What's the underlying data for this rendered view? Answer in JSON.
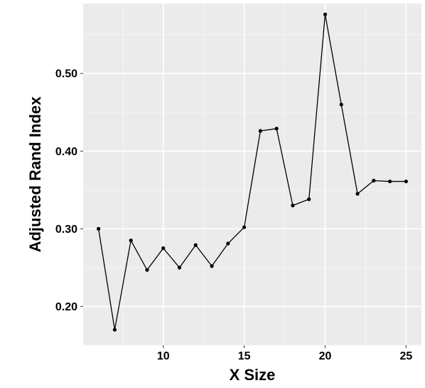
{
  "chart_data": {
    "type": "line",
    "title": "",
    "xlabel": "X Size",
    "ylabel": "Adjusted Rand Index",
    "x": [
      6,
      7,
      8,
      9,
      10,
      11,
      12,
      13,
      14,
      15,
      16,
      17,
      18,
      19,
      20,
      21,
      22,
      23,
      24,
      25
    ],
    "series": [
      {
        "values": [
          0.3,
          0.17,
          0.285,
          0.247,
          0.275,
          0.25,
          0.279,
          0.252,
          0.281,
          0.302,
          0.426,
          0.429,
          0.33,
          0.338,
          0.576,
          0.46,
          0.345,
          0.362,
          0.361,
          0.361
        ]
      }
    ],
    "xlim": [
      5.05,
      25.95
    ],
    "ylim": [
      0.15,
      0.59
    ],
    "xticks": [
      10,
      15,
      20,
      25
    ],
    "xtick_labels": [
      "10",
      "15",
      "20",
      "25"
    ],
    "yticks": [
      0.2,
      0.3,
      0.4,
      0.5
    ],
    "ytick_labels": [
      "0.20",
      "0.30",
      "0.40",
      "0.50"
    ],
    "grid": true,
    "colors": {
      "panel_background": "#ebebeb",
      "grid_major": "#ffffff",
      "grid_minor": "#f5f5f5",
      "line": "#000000",
      "point": "#000000"
    }
  }
}
